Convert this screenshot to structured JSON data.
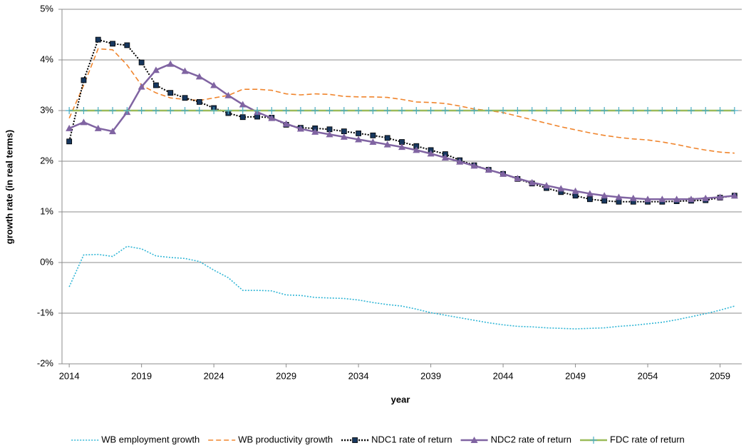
{
  "chart_data": {
    "type": "line",
    "x_label": "year",
    "y_label": "growth rate (in real terms)",
    "x": [
      2014,
      2015,
      2016,
      2017,
      2018,
      2019,
      2020,
      2021,
      2022,
      2023,
      2024,
      2025,
      2026,
      2027,
      2028,
      2029,
      2030,
      2031,
      2032,
      2033,
      2034,
      2035,
      2036,
      2037,
      2038,
      2039,
      2040,
      2041,
      2042,
      2043,
      2044,
      2045,
      2046,
      2047,
      2048,
      2049,
      2050,
      2051,
      2052,
      2053,
      2054,
      2055,
      2056,
      2057,
      2058,
      2059,
      2060
    ],
    "xlim": [
      2013.5,
      2060.5
    ],
    "xticks": [
      2014,
      2019,
      2024,
      2029,
      2034,
      2039,
      2044,
      2049,
      2054,
      2059
    ],
    "ylim": [
      -2,
      5
    ],
    "yticks": [
      {
        "value": -2,
        "label": "-2%"
      },
      {
        "value": -1,
        "label": "-1%"
      },
      {
        "value": 0,
        "label": "0%"
      },
      {
        "value": 1,
        "label": "1%"
      },
      {
        "value": 2,
        "label": "2%"
      },
      {
        "value": 3,
        "label": "3%"
      },
      {
        "value": 4,
        "label": "4%"
      },
      {
        "value": 5,
        "label": "5%"
      }
    ],
    "grid": true,
    "legend": "bottom",
    "series": [
      {
        "name": "WB employment growth",
        "color": "#31b6d6",
        "dash": "dotted",
        "marker": "none",
        "values": [
          -0.48,
          0.15,
          0.16,
          0.12,
          0.32,
          0.27,
          0.13,
          0.1,
          0.08,
          0.02,
          -0.15,
          -0.3,
          -0.55,
          -0.55,
          -0.56,
          -0.64,
          -0.65,
          -0.69,
          -0.7,
          -0.71,
          -0.74,
          -0.79,
          -0.83,
          -0.86,
          -0.92,
          -0.99,
          -1.04,
          -1.09,
          -1.14,
          -1.19,
          -1.23,
          -1.26,
          -1.27,
          -1.29,
          -1.3,
          -1.31,
          -1.3,
          -1.29,
          -1.26,
          -1.24,
          -1.21,
          -1.18,
          -1.13,
          -1.07,
          -1.01,
          -0.94,
          -0.86
        ]
      },
      {
        "name": "WB productivity growth",
        "color": "#f0852d",
        "dash": "dashed",
        "marker": "none",
        "values": [
          2.85,
          3.5,
          4.22,
          4.2,
          3.9,
          3.5,
          3.35,
          3.25,
          3.22,
          3.2,
          3.25,
          3.3,
          3.42,
          3.42,
          3.4,
          3.33,
          3.31,
          3.33,
          3.32,
          3.28,
          3.27,
          3.27,
          3.26,
          3.22,
          3.17,
          3.16,
          3.14,
          3.09,
          3.03,
          3.0,
          2.96,
          2.89,
          2.82,
          2.75,
          2.68,
          2.62,
          2.56,
          2.51,
          2.47,
          2.44,
          2.42,
          2.38,
          2.33,
          2.27,
          2.22,
          2.18,
          2.16
        ]
      },
      {
        "name": "NDC1 rate of return",
        "color": "#000000",
        "marker_color": "#17375e",
        "dash": "dotted",
        "marker": "square",
        "values": [
          2.39,
          3.6,
          4.4,
          4.32,
          4.29,
          3.95,
          3.5,
          3.35,
          3.25,
          3.17,
          3.05,
          2.95,
          2.87,
          2.88,
          2.86,
          2.72,
          2.66,
          2.65,
          2.63,
          2.59,
          2.55,
          2.51,
          2.46,
          2.38,
          2.3,
          2.22,
          2.14,
          2.02,
          1.92,
          1.83,
          1.75,
          1.65,
          1.56,
          1.47,
          1.39,
          1.32,
          1.25,
          1.22,
          1.2,
          1.2,
          1.2,
          1.2,
          1.21,
          1.22,
          1.23,
          1.28,
          1.32
        ]
      },
      {
        "name": "NDC2 rate of return",
        "color": "#8064a2",
        "marker_color": "#8064a2",
        "dash": "solid",
        "marker": "triangle",
        "values": [
          2.65,
          2.77,
          2.65,
          2.59,
          2.97,
          3.47,
          3.8,
          3.92,
          3.78,
          3.67,
          3.5,
          3.3,
          3.12,
          2.97,
          2.85,
          2.74,
          2.64,
          2.58,
          2.53,
          2.48,
          2.43,
          2.38,
          2.33,
          2.28,
          2.22,
          2.15,
          2.07,
          1.99,
          1.91,
          1.83,
          1.75,
          1.66,
          1.58,
          1.52,
          1.46,
          1.41,
          1.36,
          1.32,
          1.29,
          1.27,
          1.25,
          1.25,
          1.25,
          1.25,
          1.27,
          1.29,
          1.32
        ]
      },
      {
        "name": "FDC rate of return",
        "color": "#9bbb59",
        "marker_color": "#4bacc6",
        "dash": "solid",
        "marker": "plus",
        "values": [
          3,
          3,
          3,
          3,
          3,
          3,
          3,
          3,
          3,
          3,
          3,
          3,
          3,
          3,
          3,
          3,
          3,
          3,
          3,
          3,
          3,
          3,
          3,
          3,
          3,
          3,
          3,
          3,
          3,
          3,
          3,
          3,
          3,
          3,
          3,
          3,
          3,
          3,
          3,
          3,
          3,
          3,
          3,
          3,
          3,
          3,
          3
        ]
      }
    ]
  }
}
